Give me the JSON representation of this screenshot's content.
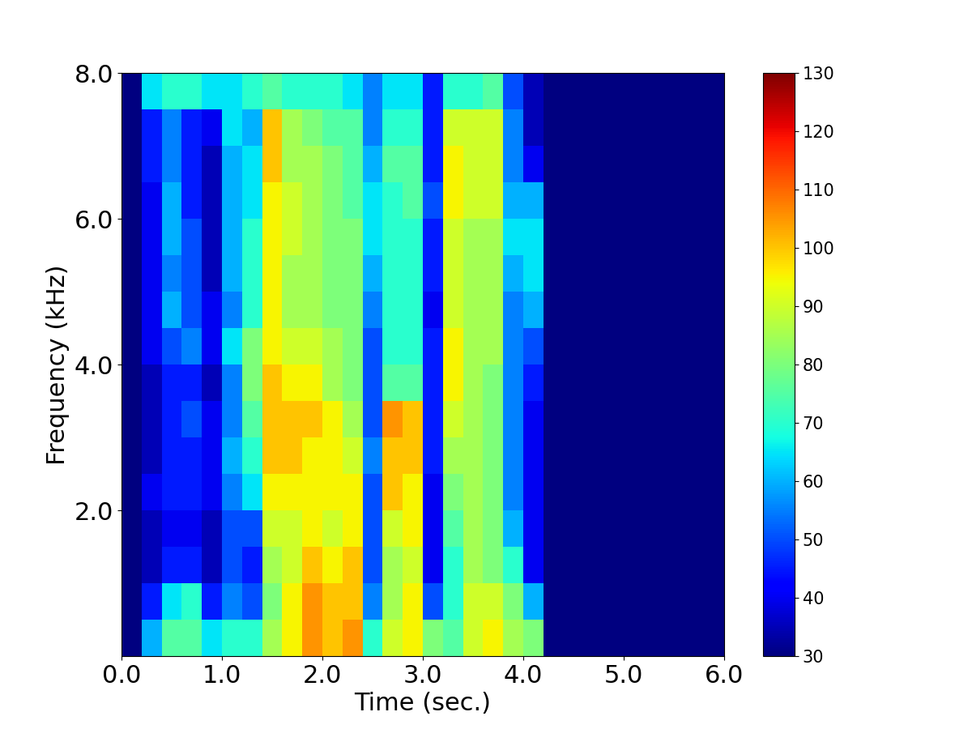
{
  "chart_data": {
    "type": "heatmap",
    "x_label": "Time (sec.)",
    "y_label": "Frequency (kHz)",
    "xlim": [
      0.0,
      6.0
    ],
    "ylim": [
      0.0,
      8.0
    ],
    "xticks": [
      0.0,
      1.0,
      2.0,
      3.0,
      4.0,
      5.0,
      6.0
    ],
    "yticks": [
      2.0,
      4.0,
      6.0,
      8.0
    ],
    "color": "jet",
    "time_edges": [
      0.0,
      0.2,
      0.4,
      0.6,
      0.8,
      1.0,
      1.2,
      1.4,
      1.6,
      1.8,
      2.0,
      2.2,
      2.4,
      2.6,
      2.8,
      3.0,
      3.2,
      3.4,
      3.6,
      3.8,
      4.0,
      4.2,
      4.4,
      4.6,
      4.8,
      5.0,
      5.2,
      5.4,
      5.6,
      5.8,
      6.0
    ],
    "frequency_edges": [
      0.0,
      0.5,
      1.0,
      1.5,
      2.0,
      2.5,
      3.0,
      3.5,
      4.0,
      4.5,
      5.0,
      5.5,
      6.0,
      6.5,
      7.0,
      7.5,
      8.0
    ],
    "cells": [
      [
        30,
        60,
        75,
        75,
        65,
        70,
        70,
        85,
        95,
        105,
        100,
        105,
        70,
        90,
        95,
        80,
        75,
        90,
        95,
        85,
        80,
        30,
        30,
        30,
        30,
        30,
        30,
        30,
        30,
        30
      ],
      [
        30,
        45,
        65,
        70,
        45,
        55,
        50,
        80,
        95,
        105,
        100,
        100,
        55,
        85,
        95,
        50,
        70,
        90,
        90,
        80,
        60,
        30,
        30,
        30,
        30,
        30,
        30,
        30,
        30,
        30
      ],
      [
        30,
        35,
        45,
        45,
        35,
        50,
        45,
        85,
        90,
        100,
        95,
        100,
        50,
        85,
        90,
        40,
        70,
        85,
        80,
        70,
        40,
        30,
        30,
        30,
        30,
        30,
        30,
        30,
        30,
        30
      ],
      [
        30,
        35,
        40,
        40,
        35,
        50,
        50,
        90,
        90,
        95,
        90,
        95,
        50,
        90,
        95,
        40,
        75,
        85,
        80,
        60,
        40,
        30,
        30,
        30,
        30,
        30,
        30,
        30,
        30,
        30
      ],
      [
        30,
        40,
        45,
        45,
        40,
        55,
        65,
        95,
        95,
        95,
        95,
        95,
        50,
        100,
        95,
        40,
        80,
        85,
        80,
        55,
        40,
        30,
        30,
        30,
        30,
        30,
        30,
        30,
        30,
        30
      ],
      [
        30,
        35,
        45,
        45,
        40,
        60,
        70,
        100,
        100,
        95,
        95,
        90,
        55,
        100,
        100,
        45,
        85,
        85,
        80,
        55,
        40,
        30,
        30,
        30,
        30,
        30,
        30,
        30,
        30,
        30
      ],
      [
        30,
        35,
        45,
        50,
        40,
        55,
        75,
        100,
        100,
        100,
        95,
        85,
        50,
        105,
        100,
        45,
        90,
        85,
        80,
        55,
        40,
        30,
        30,
        30,
        30,
        30,
        30,
        30,
        30,
        30
      ],
      [
        30,
        35,
        45,
        45,
        35,
        55,
        80,
        100,
        95,
        95,
        85,
        80,
        50,
        75,
        75,
        45,
        95,
        85,
        80,
        55,
        45,
        30,
        30,
        30,
        30,
        30,
        30,
        30,
        30,
        30
      ],
      [
        30,
        40,
        50,
        55,
        40,
        65,
        80,
        95,
        90,
        90,
        85,
        80,
        50,
        70,
        70,
        45,
        95,
        85,
        85,
        55,
        50,
        30,
        30,
        30,
        30,
        30,
        30,
        30,
        30,
        30
      ],
      [
        30,
        40,
        60,
        50,
        40,
        55,
        70,
        95,
        85,
        85,
        80,
        80,
        55,
        70,
        70,
        40,
        90,
        85,
        85,
        55,
        60,
        30,
        30,
        30,
        30,
        30,
        30,
        30,
        30,
        30
      ],
      [
        30,
        40,
        55,
        50,
        35,
        60,
        70,
        95,
        85,
        85,
        80,
        80,
        60,
        70,
        70,
        45,
        90,
        85,
        85,
        60,
        65,
        30,
        30,
        30,
        30,
        30,
        30,
        30,
        30,
        30
      ],
      [
        30,
        40,
        60,
        50,
        35,
        60,
        70,
        95,
        90,
        85,
        80,
        80,
        65,
        70,
        70,
        45,
        90,
        85,
        85,
        65,
        65,
        30,
        30,
        30,
        30,
        30,
        30,
        30,
        30,
        30
      ],
      [
        30,
        40,
        60,
        45,
        35,
        60,
        65,
        95,
        90,
        85,
        80,
        75,
        65,
        70,
        75,
        50,
        95,
        90,
        90,
        60,
        60,
        30,
        30,
        30,
        30,
        30,
        30,
        30,
        30,
        30
      ],
      [
        30,
        45,
        55,
        45,
        35,
        60,
        65,
        100,
        85,
        85,
        80,
        75,
        60,
        75,
        75,
        45,
        95,
        90,
        90,
        55,
        40,
        30,
        30,
        30,
        30,
        30,
        30,
        30,
        30,
        30
      ],
      [
        30,
        45,
        55,
        45,
        40,
        65,
        60,
        100,
        85,
        80,
        75,
        75,
        55,
        70,
        70,
        45,
        90,
        90,
        90,
        55,
        35,
        30,
        30,
        30,
        30,
        30,
        30,
        30,
        30,
        30
      ],
      [
        30,
        65,
        70,
        70,
        65,
        65,
        70,
        75,
        70,
        70,
        70,
        65,
        55,
        65,
        65,
        45,
        70,
        70,
        75,
        50,
        35,
        30,
        30,
        30,
        30,
        30,
        30,
        30,
        30,
        30
      ]
    ],
    "colorbar": {
      "range": [
        30,
        130
      ],
      "ticks": [
        30,
        40,
        50,
        60,
        70,
        80,
        90,
        100,
        110,
        120,
        130
      ]
    }
  }
}
